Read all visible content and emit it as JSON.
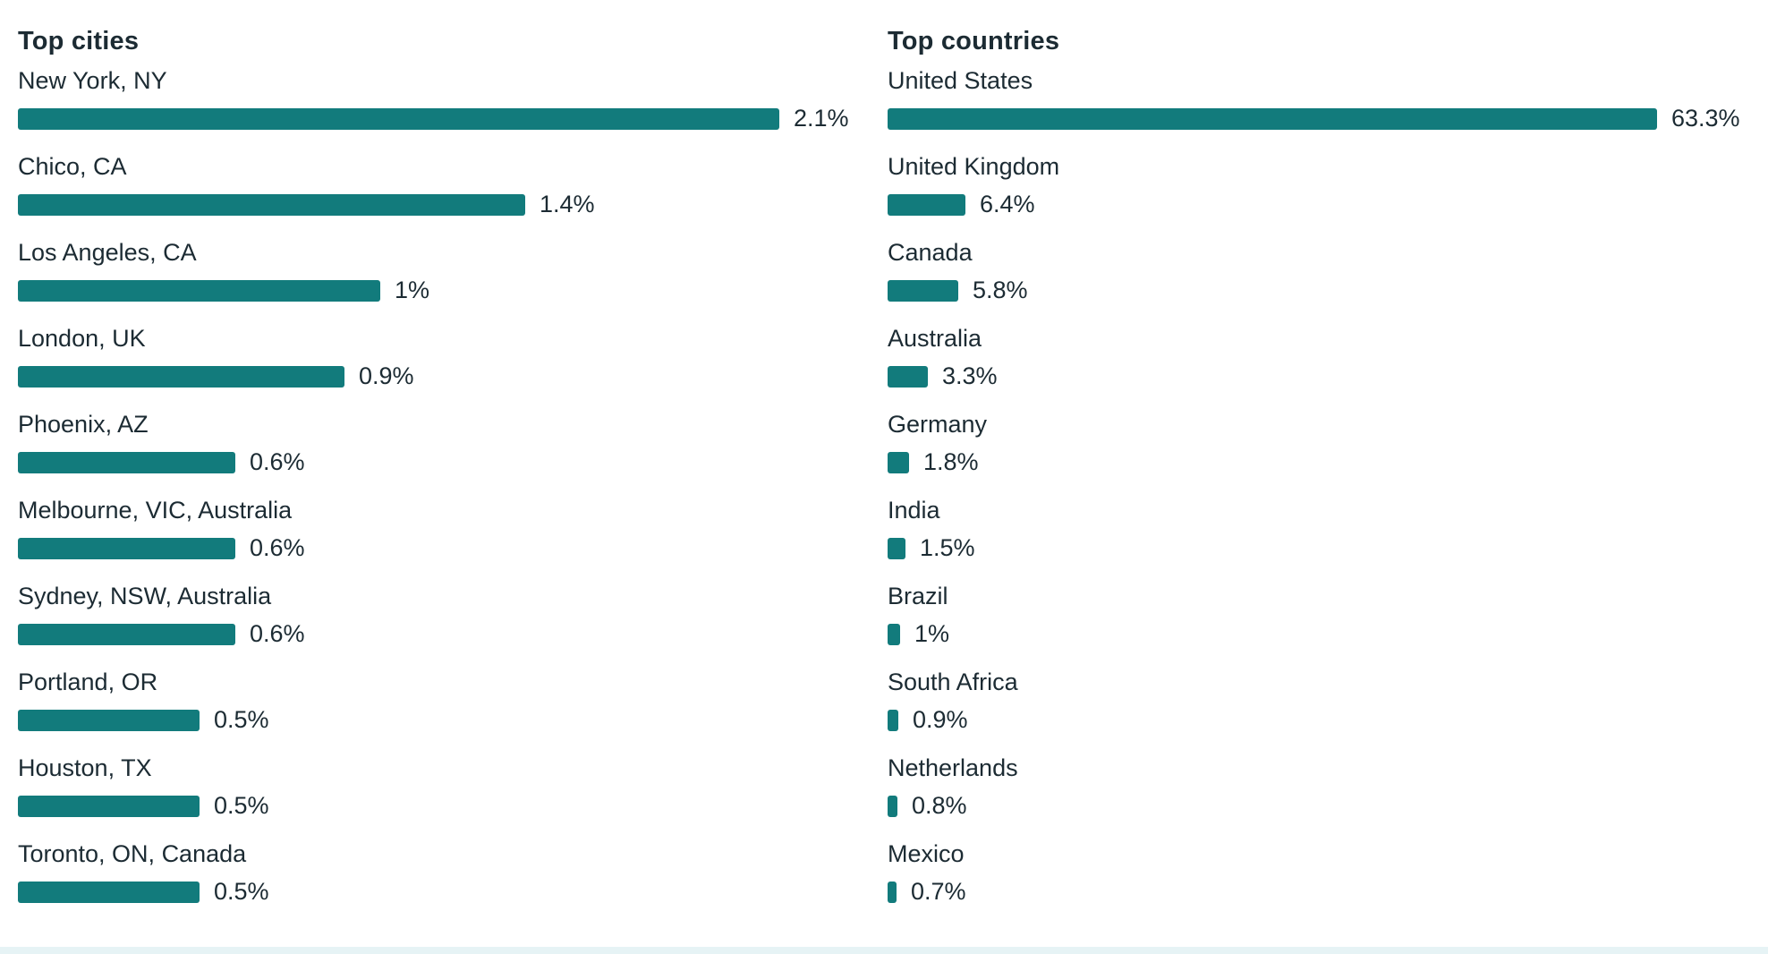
{
  "colors": {
    "bar": "#127b7c",
    "text": "#1c2b33"
  },
  "chart_data": [
    {
      "type": "bar",
      "orientation": "horizontal",
      "title": "Top cities",
      "unit": "%",
      "categories": [
        "New York, NY",
        "Chico, CA",
        "Los Angeles, CA",
        "London, UK",
        "Phoenix, AZ",
        "Melbourne, VIC, Australia",
        "Sydney, NSW, Australia",
        "Portland, OR",
        "Houston, TX",
        "Toronto, ON, Canada"
      ],
      "values": [
        2.1,
        1.4,
        1,
        0.9,
        0.6,
        0.6,
        0.6,
        0.5,
        0.5,
        0.5
      ],
      "labels": [
        "2.1%",
        "1.4%",
        "1%",
        "0.9%",
        "0.6%",
        "0.6%",
        "0.6%",
        "0.5%",
        "0.5%",
        "0.5%"
      ]
    },
    {
      "type": "bar",
      "orientation": "horizontal",
      "title": "Top countries",
      "unit": "%",
      "categories": [
        "United States",
        "United Kingdom",
        "Canada",
        "Australia",
        "Germany",
        "India",
        "Brazil",
        "South Africa",
        "Netherlands",
        "Mexico"
      ],
      "values": [
        63.3,
        6.4,
        5.8,
        3.3,
        1.8,
        1.5,
        1,
        0.9,
        0.8,
        0.7
      ],
      "labels": [
        "63.3%",
        "6.4%",
        "5.8%",
        "3.3%",
        "1.8%",
        "1.5%",
        "1%",
        "0.9%",
        "0.8%",
        "0.7%"
      ]
    }
  ]
}
